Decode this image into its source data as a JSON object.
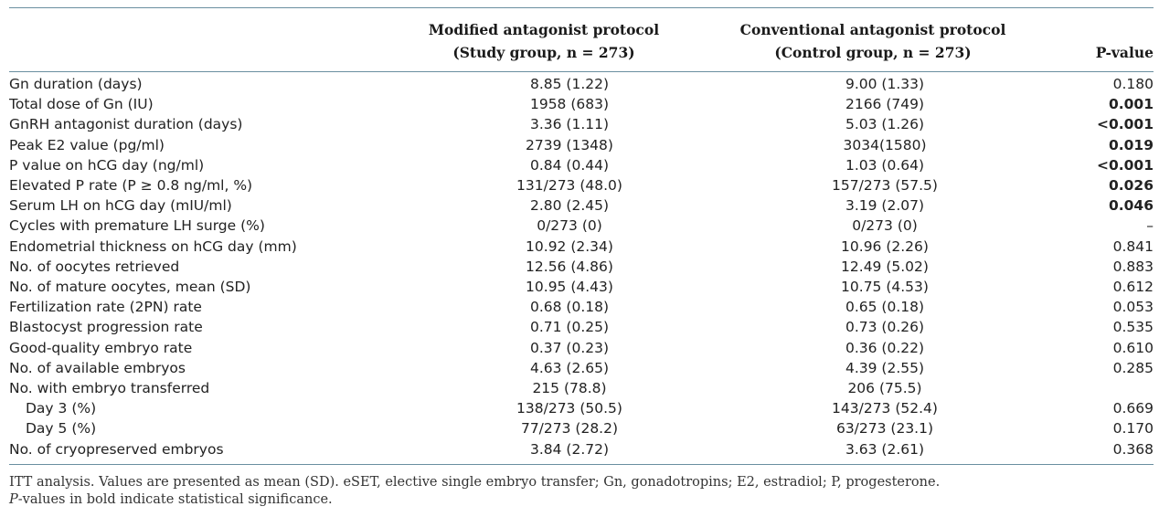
{
  "headers": {
    "study_line1": "Modified antagonist protocol",
    "study_line2": "(Study group, n = 273)",
    "control_line1": "Conventional antagonist protocol",
    "control_line2": "(Control group, n = 273)",
    "pvalue": "P-value"
  },
  "rows": [
    {
      "label": "Gn duration (days)",
      "study": "8.85 (1.22)",
      "control": "9.00 (1.33)",
      "p": "0.180",
      "sig": false,
      "indent": false
    },
    {
      "label": "Total dose of Gn (IU)",
      "study": "1958 (683)",
      "control": "2166 (749)",
      "p": "0.001",
      "sig": true,
      "indent": false
    },
    {
      "label": "GnRH antagonist duration (days)",
      "study": "3.36 (1.11)",
      "control": "5.03 (1.26)",
      "p": "<0.001",
      "sig": true,
      "indent": false
    },
    {
      "label": "Peak E2 value (pg/ml)",
      "study": "2739 (1348)",
      "control": "3034(1580)",
      "p": "0.019",
      "sig": true,
      "indent": false
    },
    {
      "label": "P value on hCG day (ng/ml)",
      "study": "0.84 (0.44)",
      "control": "1.03 (0.64)",
      "p": "<0.001",
      "sig": true,
      "indent": false
    },
    {
      "label": "Elevated P rate (P ≥ 0.8 ng/ml, %)",
      "study": "131/273 (48.0)",
      "control": "157/273 (57.5)",
      "p": "0.026",
      "sig": true,
      "indent": false
    },
    {
      "label": "Serum LH on hCG day (mIU/ml)",
      "study": "2.80 (2.45)",
      "control": "3.19 (2.07)",
      "p": "0.046",
      "sig": true,
      "indent": false
    },
    {
      "label": "Cycles with premature LH surge (%)",
      "study": "0/273 (0)",
      "control": "0/273 (0)",
      "p": "–",
      "sig": false,
      "indent": false
    },
    {
      "label": "Endometrial thickness on hCG day (mm)",
      "study": "10.92 (2.34)",
      "control": "10.96 (2.26)",
      "p": "0.841",
      "sig": false,
      "indent": false
    },
    {
      "label": "No. of oocytes retrieved",
      "study": "12.56 (4.86)",
      "control": "12.49 (5.02)",
      "p": "0.883",
      "sig": false,
      "indent": false
    },
    {
      "label": "No. of mature oocytes, mean (SD)",
      "study": "10.95 (4.43)",
      "control": "10.75 (4.53)",
      "p": "0.612",
      "sig": false,
      "indent": false
    },
    {
      "label": "Fertilization rate (2PN) rate",
      "study": "0.68 (0.18)",
      "control": "0.65 (0.18)",
      "p": "0.053",
      "sig": false,
      "indent": false
    },
    {
      "label": "Blastocyst progression rate",
      "study": "0.71 (0.25)",
      "control": "0.73 (0.26)",
      "p": "0.535",
      "sig": false,
      "indent": false
    },
    {
      "label": "Good-quality embryo rate",
      "study": "0.37 (0.23)",
      "control": "0.36 (0.22)",
      "p": "0.610",
      "sig": false,
      "indent": false
    },
    {
      "label": "No. of available embryos",
      "study": "4.63 (2.65)",
      "control": "4.39 (2.55)",
      "p": "0.285",
      "sig": false,
      "indent": false
    },
    {
      "label": "No. with embryo transferred",
      "study": "215 (78.8)",
      "control": "206 (75.5)",
      "p": "",
      "sig": false,
      "indent": false
    },
    {
      "label": "Day 3 (%)",
      "study": "138/273 (50.5)",
      "control": "143/273 (52.4)",
      "p": "0.669",
      "sig": false,
      "indent": true
    },
    {
      "label": "Day 5 (%)",
      "study": "77/273 (28.2)",
      "control": "63/273 (23.1)",
      "p": "0.170",
      "sig": false,
      "indent": true
    },
    {
      "label": "No. of cryopreserved embryos",
      "study": "3.84 (2.72)",
      "control": "3.63 (2.61)",
      "p": "0.368",
      "sig": false,
      "indent": false
    }
  ],
  "footnote": {
    "line1": "ITT analysis. Values are presented as mean (SD). eSET, elective single embryo transfer; Gn, gonadotropins; E2, estradiol; P, progesterone.",
    "line2_italic": "P",
    "line2_rest": "-values in bold indicate statistical significance."
  }
}
